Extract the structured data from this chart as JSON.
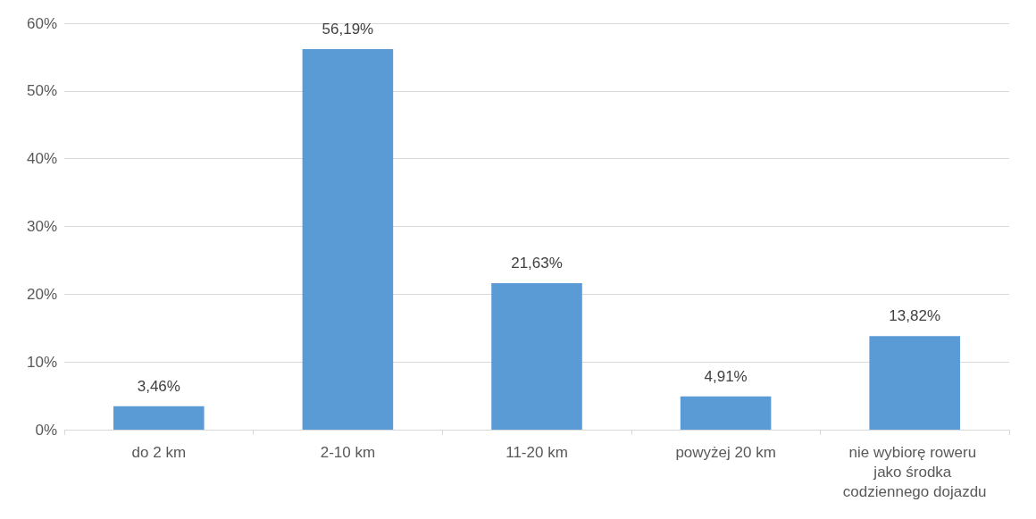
{
  "chart_data": {
    "type": "bar",
    "categories": [
      "do 2 km",
      "2-10 km",
      "11-20 km",
      "powyżej 20 km",
      "nie wybiorę roweru jako środka codziennego dojazdu"
    ],
    "values": [
      3.46,
      56.19,
      21.63,
      4.91,
      13.82
    ],
    "value_labels": [
      "3,46%",
      "56,19%",
      "21,63%",
      "4,91%",
      "13,82%"
    ],
    "color": "#5b9bd5",
    "ylim": [
      0,
      60
    ],
    "yticks": [
      {
        "value": 0,
        "label": "0%"
      },
      {
        "value": 10,
        "label": "10%"
      },
      {
        "value": 20,
        "label": "20%"
      },
      {
        "value": 30,
        "label": "30%"
      },
      {
        "value": 40,
        "label": "40%"
      },
      {
        "value": 50,
        "label": "50%"
      },
      {
        "value": 60,
        "label": "60%"
      }
    ],
    "grid": "y"
  }
}
